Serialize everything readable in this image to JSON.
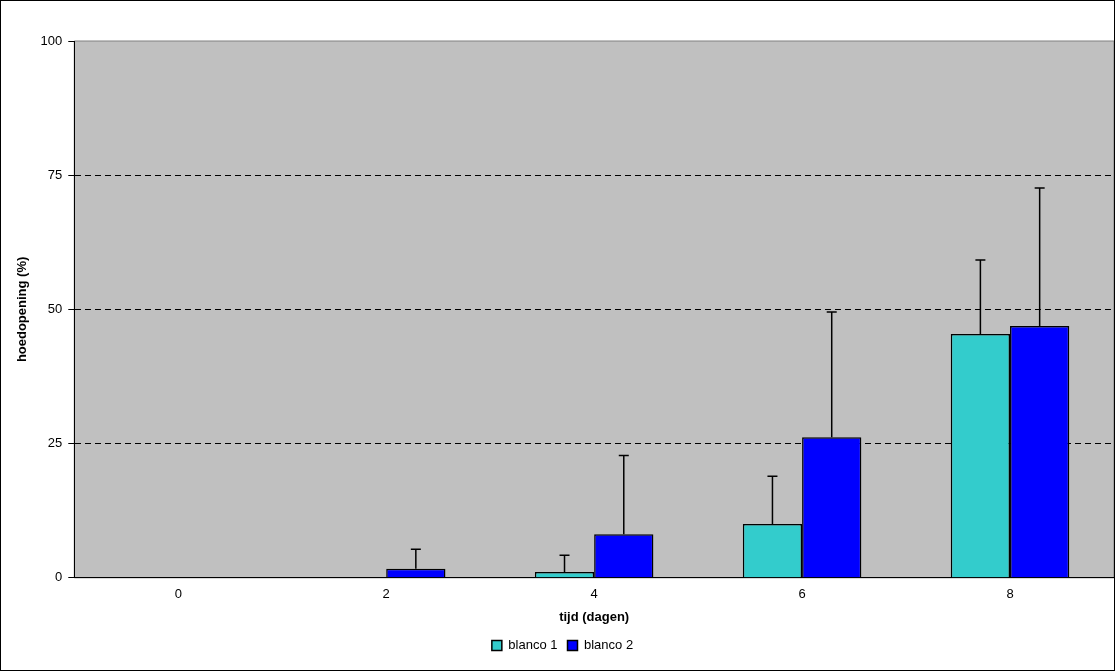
{
  "chart_data": {
    "type": "bar",
    "xlabel": "tijd (dagen)",
    "ylabel": "hoedopening (%)",
    "categories": [
      "0",
      "2",
      "4",
      "6",
      "8"
    ],
    "series": [
      {
        "name": "blanco 1",
        "color": "#33cccc",
        "values": [
          0,
          0,
          1.1,
          10.0,
          45.4
        ],
        "errors": [
          null,
          null,
          3.1,
          8.9,
          13.8
        ]
      },
      {
        "name": "blanco 2",
        "color": "#0000ff",
        "values": [
          0,
          1.7,
          8.1,
          26.2,
          46.9
        ],
        "errors": [
          null,
          3.6,
          14.7,
          23.3,
          25.7
        ]
      }
    ],
    "ylim": [
      0,
      100
    ],
    "yticks": [
      0,
      25,
      50,
      75,
      100
    ],
    "grid": "y",
    "line_style": "dashed",
    "legend": "bottom"
  }
}
